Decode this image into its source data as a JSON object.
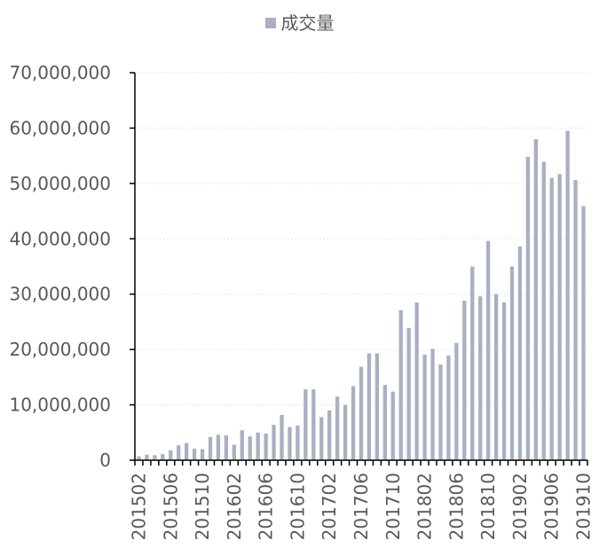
{
  "legend": {
    "label": "成交量",
    "color": "#a8b0c2"
  },
  "chart_data": {
    "type": "bar",
    "title": "",
    "xlabel": "",
    "ylabel": "",
    "ylim": [
      0,
      70000000
    ],
    "yticks": [
      "0",
      "10,000,000",
      "20,000,000",
      "30,000,000",
      "40,000,000",
      "50,000,000",
      "60,000,000",
      "70,000,000"
    ],
    "grid": true,
    "legend_position": "top-center",
    "categories": [
      "201502",
      "201503",
      "201504",
      "201505",
      "201506",
      "201507",
      "201508",
      "201509",
      "201510",
      "201511",
      "201512",
      "201601",
      "201602",
      "201603",
      "201604",
      "201605",
      "201606",
      "201607",
      "201608",
      "201609",
      "201610",
      "201611",
      "201612",
      "201701",
      "201702",
      "201703",
      "201704",
      "201705",
      "201706",
      "201707",
      "201708",
      "201709",
      "201710",
      "201711",
      "201712",
      "201801",
      "201802",
      "201803",
      "201804",
      "201805",
      "201806",
      "201807",
      "201808",
      "201809",
      "201810",
      "201811",
      "201812",
      "201901",
      "201902",
      "201903",
      "201904",
      "201905",
      "201906",
      "201907",
      "201908",
      "201909",
      "201910"
    ],
    "xtick_labels": [
      "201502",
      "201506",
      "201510",
      "201602",
      "201606",
      "201610",
      "201702",
      "201706",
      "201710",
      "201802",
      "201806",
      "201810",
      "201902",
      "201906",
      "201910"
    ],
    "series": [
      {
        "name": "成交量",
        "color": "#a8b0c2",
        "values": [
          700000,
          1000000,
          900000,
          1100000,
          1800000,
          2700000,
          3100000,
          2100000,
          2000000,
          4200000,
          4600000,
          4500000,
          2800000,
          5400000,
          4300000,
          5000000,
          4800000,
          6400000,
          8200000,
          6000000,
          6300000,
          12800000,
          12800000,
          7800000,
          9000000,
          11500000,
          10000000,
          13400000,
          16900000,
          19300000,
          19300000,
          13600000,
          12400000,
          27100000,
          23900000,
          28500000,
          19100000,
          20100000,
          17300000,
          18900000,
          21200000,
          28800000,
          35000000,
          29600000,
          39600000,
          30000000,
          28500000,
          35000000,
          38600000,
          54800000,
          58000000,
          53900000,
          51000000,
          51700000,
          59500000,
          50600000,
          45900000
        ]
      }
    ]
  }
}
